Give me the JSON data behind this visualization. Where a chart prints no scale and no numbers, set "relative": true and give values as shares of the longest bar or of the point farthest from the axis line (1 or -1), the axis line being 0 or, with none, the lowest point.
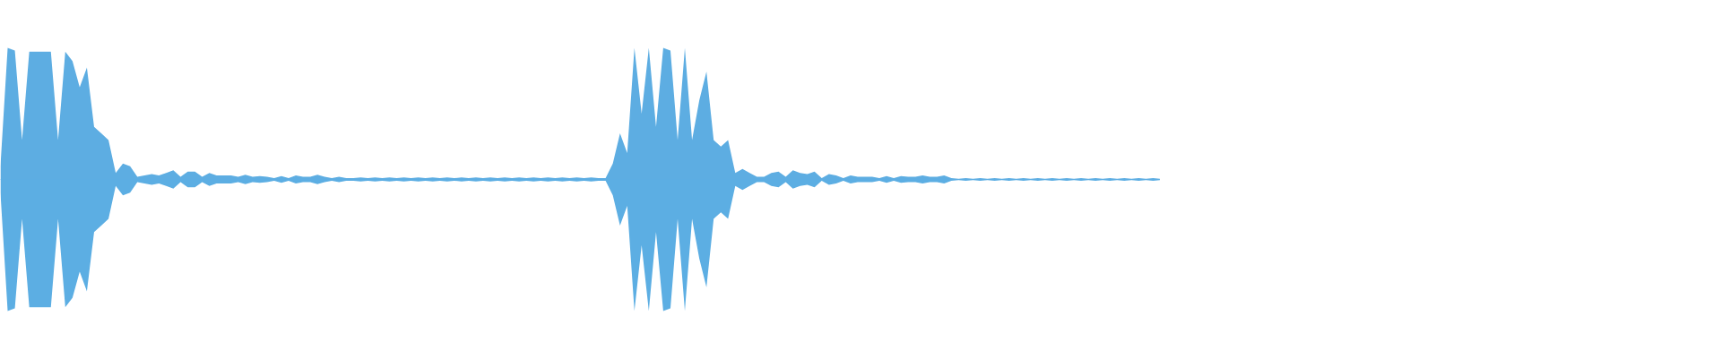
{
  "chart_data": {
    "type": "area",
    "relative": true,
    "ref_lines": [
      {
        "axis": "y",
        "value": 0,
        "color": "#5dade2"
      }
    ],
    "categories": [
      null,
      null,
      null,
      null,
      null,
      null,
      null,
      null,
      null,
      null,
      null,
      null,
      null,
      null,
      null,
      null,
      null,
      null,
      null,
      null,
      null,
      null,
      null,
      null,
      null,
      null,
      null,
      null,
      null,
      null,
      null,
      null,
      null,
      null,
      null,
      null,
      null,
      null,
      null,
      null,
      null,
      null,
      null,
      null,
      null,
      null,
      null,
      null,
      null,
      null,
      null,
      null,
      null,
      null,
      null,
      null,
      null,
      null,
      null,
      null,
      null,
      null,
      null,
      null,
      null,
      null,
      null,
      null,
      null,
      null,
      null,
      null,
      null,
      null,
      null,
      null,
      null,
      null,
      null,
      null,
      null,
      null,
      null,
      null,
      null,
      null,
      null,
      null,
      null,
      null,
      null,
      null,
      null,
      null,
      null,
      null,
      null,
      null,
      null,
      null,
      null,
      null,
      null,
      null,
      null,
      null,
      null,
      null,
      null,
      null,
      null,
      null,
      null,
      null,
      null,
      null,
      null,
      null,
      null,
      null,
      null,
      null,
      null,
      null,
      null,
      null,
      null,
      null,
      null,
      null,
      null,
      null,
      null,
      null,
      null,
      null,
      null,
      null,
      null,
      null,
      null,
      null,
      null,
      null,
      null,
      null,
      null,
      null,
      null,
      null,
      null,
      null,
      null,
      null,
      null,
      null,
      null,
      null,
      null,
      null,
      null,
      null
    ],
    "series": [
      {
        "color": "#5dade2",
        "values": [
          0.1,
          1,
          0.98,
          0.3,
          0.97,
          0.97,
          0.97,
          0.97,
          0.3,
          0.97,
          0.9,
          0.7,
          0.85,
          0.4,
          0.35,
          0.3,
          0.05,
          0.12,
          0.1,
          0.02,
          0.03,
          0.04,
          0.03,
          0.05,
          0.07,
          0.02,
          0.06,
          0.06,
          0.02,
          0.05,
          0.03,
          0.03,
          0.03,
          0.02,
          0.035,
          0.02,
          0.025,
          0.02,
          0.01,
          0.025,
          0.01,
          0.03,
          0.02,
          0.02,
          0.035,
          0.02,
          0.01,
          0.02,
          0.01,
          0.01,
          0.015,
          0.01,
          0.015,
          0.01,
          0.015,
          0.01,
          0.015,
          0.01,
          0.015,
          0.01,
          0.015,
          0.01,
          0.015,
          0.01,
          0.015,
          0.01,
          0.015,
          0.01,
          0.015,
          0.01,
          0.015,
          0.01,
          0.015,
          0.01,
          0.015,
          0.01,
          0.015,
          0.01,
          0.015,
          0.01,
          0.015,
          0.01,
          0.015,
          0.01,
          0.01,
          0.12,
          0.35,
          0.2,
          1,
          0.5,
          1,
          0.4,
          1,
          0.98,
          0.3,
          1,
          0.3,
          0.6,
          0.82,
          0.3,
          0.25,
          0.3,
          0.05,
          0.08,
          0.05,
          0.02,
          0.02,
          0.05,
          0.06,
          0.02,
          0.07,
          0.05,
          0.04,
          0.06,
          0.01,
          0.04,
          0.03,
          0.01,
          0.03,
          0.02,
          0.02,
          0.02,
          0.01,
          0.025,
          0.01,
          0.025,
          0.02,
          0.02,
          0.03,
          0.02,
          0.02,
          0.03,
          0.01,
          0.005,
          0.01,
          0.005,
          0.01,
          0.005,
          0.01,
          0.005,
          0.01,
          0.005,
          0.01,
          0.005,
          0.01,
          0.005,
          0.01,
          0.005,
          0.01,
          0.005,
          0.01,
          0.005,
          0.01,
          0.005,
          0.01,
          0.005,
          0.01,
          0.005,
          0.01,
          0.005,
          0.01,
          0.005
        ]
      },
      {
        "color": "#5caee3",
        "values": [
          -0.1,
          -1,
          -0.98,
          -0.3,
          -0.97,
          -0.97,
          -0.97,
          -0.97,
          -0.3,
          -0.97,
          -0.9,
          -0.7,
          -0.85,
          -0.4,
          -0.35,
          -0.3,
          -0.05,
          -0.12,
          -0.1,
          -0.02,
          -0.03,
          -0.04,
          -0.03,
          -0.05,
          -0.07,
          -0.02,
          -0.06,
          -0.06,
          -0.02,
          -0.05,
          -0.03,
          -0.03,
          -0.03,
          -0.02,
          -0.035,
          -0.02,
          -0.025,
          -0.02,
          -0.01,
          -0.025,
          -0.01,
          -0.03,
          -0.02,
          -0.02,
          -0.035,
          -0.02,
          -0.01,
          -0.02,
          -0.01,
          -0.01,
          -0.015,
          -0.01,
          -0.015,
          -0.01,
          -0.015,
          -0.01,
          -0.015,
          -0.01,
          -0.015,
          -0.01,
          -0.015,
          -0.01,
          -0.015,
          -0.01,
          -0.015,
          -0.01,
          -0.015,
          -0.01,
          -0.015,
          -0.01,
          -0.015,
          -0.01,
          -0.015,
          -0.01,
          -0.015,
          -0.01,
          -0.015,
          -0.01,
          -0.015,
          -0.01,
          -0.015,
          -0.01,
          -0.015,
          -0.01,
          -0.01,
          -0.12,
          -0.35,
          -0.2,
          -1,
          -0.5,
          -1,
          -0.4,
          -1,
          -0.98,
          -0.3,
          -1,
          -0.3,
          -0.6,
          -0.82,
          -0.3,
          -0.25,
          -0.3,
          -0.05,
          -0.08,
          -0.05,
          -0.02,
          -0.02,
          -0.05,
          -0.06,
          -0.02,
          -0.07,
          -0.05,
          -0.04,
          -0.06,
          -0.01,
          -0.04,
          -0.03,
          -0.01,
          -0.03,
          -0.02,
          -0.02,
          -0.02,
          -0.01,
          -0.025,
          -0.01,
          -0.025,
          -0.02,
          -0.02,
          -0.03,
          -0.02,
          -0.02,
          -0.03,
          -0.01,
          -0.005,
          -0.01,
          -0.005,
          -0.01,
          -0.005,
          -0.01,
          -0.005,
          -0.01,
          -0.005,
          -0.01,
          -0.005,
          -0.01,
          -0.005,
          -0.01,
          -0.005,
          -0.01,
          -0.005,
          -0.01,
          -0.005,
          -0.01,
          -0.005,
          -0.01,
          -0.005,
          -0.01,
          -0.005,
          -0.01,
          -0.005,
          -0.01,
          -0.005
        ]
      }
    ]
  }
}
